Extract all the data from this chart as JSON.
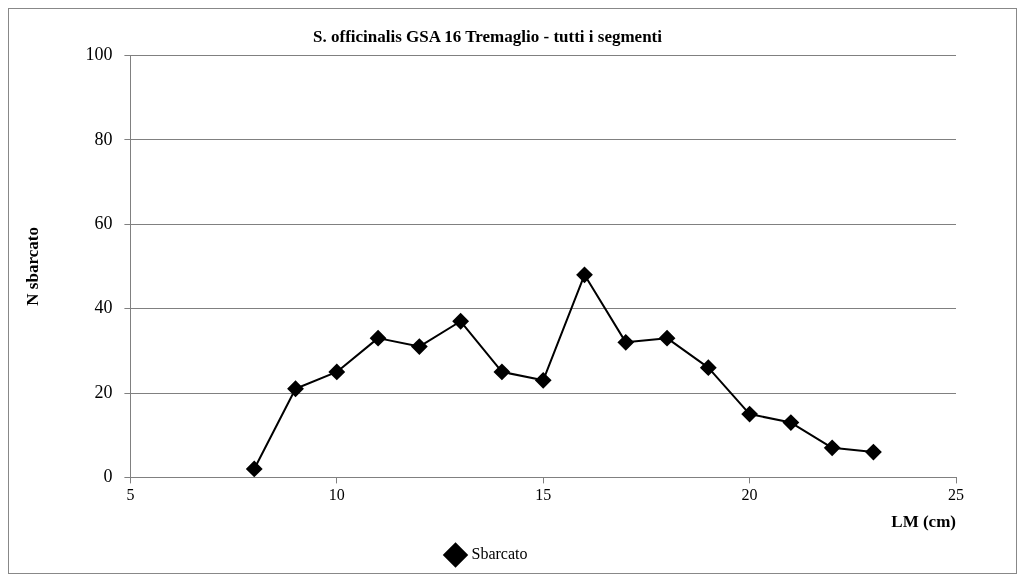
{
  "chart_data": {
    "type": "line",
    "title": "S. officinalis GSA 16 Tremaglio - tutti i segmenti",
    "xlabel": "LM (cm)",
    "ylabel": "N sbarcato",
    "x": [
      8,
      9,
      10,
      11,
      12,
      13,
      14,
      15,
      16,
      17,
      18,
      19,
      20,
      21,
      22,
      23
    ],
    "series": [
      {
        "name": "Sbarcato",
        "color": "#000000",
        "values": [
          2,
          21,
          25,
          33,
          31,
          37,
          25,
          23,
          48,
          32,
          33,
          26,
          15,
          13,
          7,
          6
        ]
      }
    ],
    "xlim": [
      5,
      25
    ],
    "xticks": [
      5,
      10,
      15,
      20,
      25
    ],
    "ylim": [
      0,
      100
    ],
    "yticks": [
      0,
      20,
      40,
      60,
      80,
      100
    ],
    "grid": "y",
    "legend": "bottom",
    "marker": "diamond",
    "line_style": "solid"
  }
}
